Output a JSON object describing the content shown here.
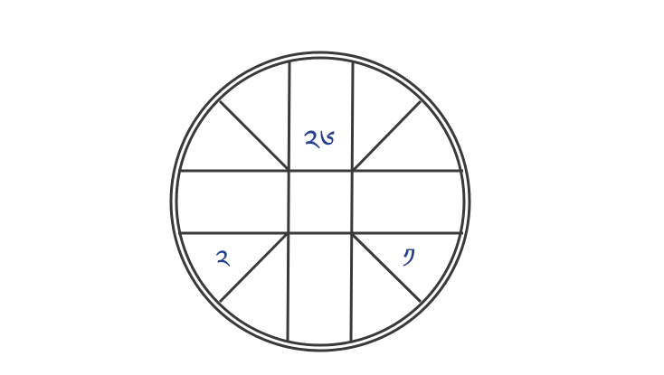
{
  "diagram": {
    "line_color": "#3a3a3a",
    "glyph_color": "#243f8c",
    "glyph_top": "༢༦",
    "glyph_left": "༢",
    "glyph_right": "༡"
  }
}
